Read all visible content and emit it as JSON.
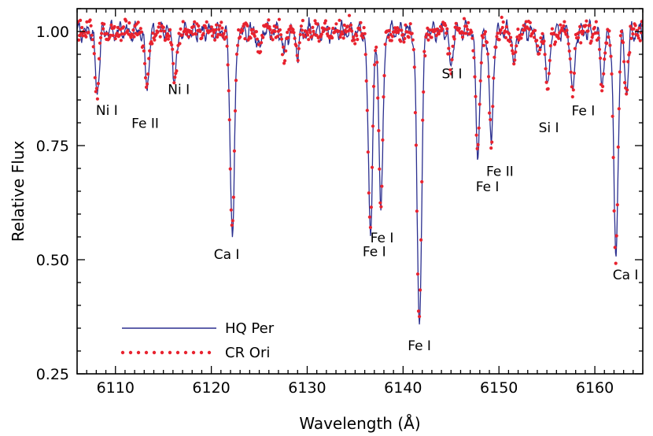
{
  "chart_data": {
    "type": "line",
    "title": "",
    "xlabel": "Wavelength (Å)",
    "ylabel": "Relative Flux",
    "xlim": [
      6106,
      6165
    ],
    "ylim": [
      0.25,
      1.05
    ],
    "x_ticks": [
      6110,
      6120,
      6130,
      6140,
      6150,
      6160
    ],
    "y_ticks": [
      0.25,
      0.5,
      0.75,
      1.0
    ],
    "y_tick_labels": [
      "0.25",
      "0.50",
      "0.75",
      "1.00"
    ],
    "grid": false,
    "legend_position": "bottom-left",
    "lines": [
      {
        "center": 6108.1,
        "depth": 0.135,
        "width": 0.28
      },
      {
        "center": 6113.3,
        "depth": 0.115,
        "width": 0.3
      },
      {
        "center": 6116.2,
        "depth": 0.11,
        "width": 0.28
      },
      {
        "center": 6122.2,
        "depth": 0.445,
        "width": 0.32
      },
      {
        "center": 6136.6,
        "depth": 0.43,
        "width": 0.33
      },
      {
        "center": 6137.7,
        "depth": 0.38,
        "width": 0.3
      },
      {
        "center": 6141.7,
        "depth": 0.64,
        "width": 0.34
      },
      {
        "center": 6145.0,
        "depth": 0.08,
        "width": 0.25
      },
      {
        "center": 6147.8,
        "depth": 0.265,
        "width": 0.3
      },
      {
        "center": 6149.2,
        "depth": 0.245,
        "width": 0.28
      },
      {
        "center": 6155.1,
        "depth": 0.13,
        "width": 0.26
      },
      {
        "center": 6157.7,
        "depth": 0.14,
        "width": 0.28
      },
      {
        "center": 6160.8,
        "depth": 0.11,
        "width": 0.3
      },
      {
        "center": 6162.2,
        "depth": 0.49,
        "width": 0.32
      },
      {
        "center": 6163.3,
        "depth": 0.13,
        "width": 0.26
      },
      {
        "center": 6127.6,
        "depth": 0.05,
        "width": 0.25
      },
      {
        "center": 6129.0,
        "depth": 0.045,
        "width": 0.25
      },
      {
        "center": 6125.0,
        "depth": 0.04,
        "width": 0.25
      },
      {
        "center": 6151.6,
        "depth": 0.07,
        "width": 0.25
      },
      {
        "center": 6154.2,
        "depth": 0.06,
        "width": 0.25
      }
    ],
    "series": [
      {
        "name": "HQ Per",
        "style": "solid",
        "color": "#2b2f8f"
      },
      {
        "name": "CR Ori",
        "style": "dotted",
        "color": "#e8232f"
      }
    ],
    "annotations": [
      {
        "text": "Ni I",
        "x": 6109.1,
        "y": 0.817
      },
      {
        "text": "Fe II",
        "x": 6113.1,
        "y": 0.789
      },
      {
        "text": "Ni I",
        "x": 6116.6,
        "y": 0.863
      },
      {
        "text": "Ca I",
        "x": 6121.6,
        "y": 0.502
      },
      {
        "text": "Fe I",
        "x": 6137.8,
        "y": 0.538
      },
      {
        "text": "Fe I",
        "x": 6137.0,
        "y": 0.508
      },
      {
        "text": "Fe I",
        "x": 6141.7,
        "y": 0.302
      },
      {
        "text": "Si I",
        "x": 6145.1,
        "y": 0.897
      },
      {
        "text": "Fe II",
        "x": 6150.1,
        "y": 0.684
      },
      {
        "text": "Fe I",
        "x": 6148.8,
        "y": 0.65
      },
      {
        "text": "Si I",
        "x": 6155.2,
        "y": 0.779
      },
      {
        "text": "Fe I",
        "x": 6158.8,
        "y": 0.816
      },
      {
        "text": "Ca I",
        "x": 6163.2,
        "y": 0.457
      }
    ]
  }
}
